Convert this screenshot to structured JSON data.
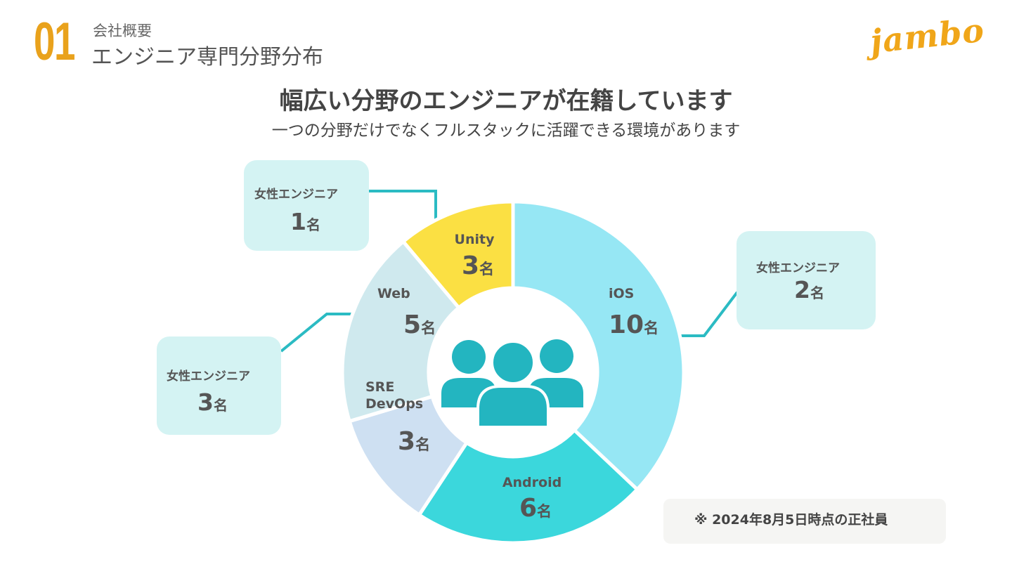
{
  "header": {
    "section_number": "01",
    "section_label": "会社概要",
    "section_title": "エンジニア専門分野分布",
    "logo": "jambo"
  },
  "headline": "幅広い分野のエンジニアが在籍しています",
  "subheadline": "一つの分野だけでなくフルスタックに活躍できる環境があります",
  "callouts": [
    {
      "label": "女性エンジニア",
      "value": "1",
      "unit": "名"
    },
    {
      "label": "女性エンジニア",
      "value": "2",
      "unit": "名"
    },
    {
      "label": "女性エンジニア",
      "value": "3",
      "unit": "名"
    }
  ],
  "note": "※ 2024年8月5日時点の正社員",
  "center_icon": "people-group-icon",
  "chart_data": {
    "type": "pie",
    "variant": "donut",
    "unit": "名",
    "categories": [
      "iOS",
      "Android",
      "SRE\nDevOps",
      "Web",
      "Unity"
    ],
    "values": [
      10,
      6,
      3,
      5,
      3
    ],
    "colors": [
      "#96E7F4",
      "#3BD7DC",
      "#CEE0F2",
      "#CFE9EE",
      "#FBE043"
    ]
  },
  "colors": {
    "accent": "#E9A21C",
    "connector": "#2BBBC3",
    "callout_bg": "#D4F3F3",
    "icon": "#23B5C0"
  }
}
